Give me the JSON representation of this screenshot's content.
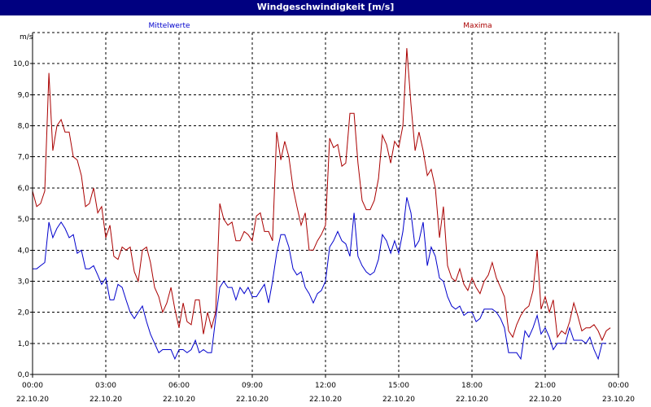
{
  "window": {
    "title": "Windgeschwindigkeit [m/s]"
  },
  "chart_data": {
    "type": "line",
    "title": "Windgeschwindigkeit [m/s]",
    "ylabel": "m/s",
    "ylim": [
      0,
      11
    ],
    "xlim": [
      0,
      24
    ],
    "grid": true,
    "legend": "top, above plot",
    "y_ticks": [
      "0,0",
      "1,0",
      "2,0",
      "3,0",
      "4,0",
      "5,0",
      "6,0",
      "7,0",
      "8,0",
      "9,0",
      "10,0"
    ],
    "x_ticks": [
      {
        "time": "00:00",
        "date": "22.10.20"
      },
      {
        "time": "03:00",
        "date": "22.10.20"
      },
      {
        "time": "06:00",
        "date": "22.10.20"
      },
      {
        "time": "09:00",
        "date": "22.10.20"
      },
      {
        "time": "12:00",
        "date": "22.10.20"
      },
      {
        "time": "15:00",
        "date": "22.10.20"
      },
      {
        "time": "18:00",
        "date": "22.10.20"
      },
      {
        "time": "21:00",
        "date": "22.10.20"
      },
      {
        "time": "00:00",
        "date": "23.10.20"
      }
    ],
    "x_hours": [
      0,
      0.17,
      0.33,
      0.5,
      0.67,
      0.83,
      1,
      1.17,
      1.33,
      1.5,
      1.67,
      1.83,
      2,
      2.17,
      2.33,
      2.5,
      2.67,
      2.83,
      3,
      3.17,
      3.33,
      3.5,
      3.67,
      3.83,
      4,
      4.17,
      4.33,
      4.5,
      4.67,
      4.83,
      5,
      5.17,
      5.33,
      5.5,
      5.67,
      5.83,
      6,
      6.17,
      6.33,
      6.5,
      6.67,
      6.83,
      7,
      7.17,
      7.33,
      7.5,
      7.67,
      7.83,
      8,
      8.17,
      8.33,
      8.5,
      8.67,
      8.83,
      9,
      9.17,
      9.33,
      9.5,
      9.67,
      9.83,
      10,
      10.17,
      10.33,
      10.5,
      10.67,
      10.83,
      11,
      11.17,
      11.33,
      11.5,
      11.67,
      11.83,
      12,
      12.17,
      12.33,
      12.5,
      12.67,
      12.83,
      13,
      13.17,
      13.33,
      13.5,
      13.67,
      13.83,
      14,
      14.17,
      14.33,
      14.5,
      14.67,
      14.83,
      15,
      15.17,
      15.33,
      15.5,
      15.67,
      15.83,
      16,
      16.17,
      16.33,
      16.5,
      16.67,
      16.83,
      17,
      17.17,
      17.33,
      17.5,
      17.67,
      17.83,
      18,
      18.17,
      18.33,
      18.5,
      18.67,
      18.83,
      19,
      19.17,
      19.33,
      19.5,
      19.67,
      19.83,
      20,
      20.17,
      20.33,
      20.5,
      20.67,
      20.83,
      21,
      21.17,
      21.33,
      21.5,
      21.67,
      21.83,
      22,
      22.17,
      22.33,
      22.5,
      22.67,
      22.83,
      23,
      23.17,
      23.33,
      23.5,
      23.67,
      23.83,
      24
    ],
    "series": [
      {
        "name": "Mittelwerte",
        "color": "#0000cc",
        "values": [
          3.4,
          3.4,
          3.5,
          3.6,
          4.9,
          4.4,
          4.7,
          4.9,
          4.7,
          4.4,
          4.5,
          3.9,
          4.0,
          3.4,
          3.4,
          3.5,
          3.2,
          2.9,
          3.1,
          2.4,
          2.4,
          2.9,
          2.8,
          2.4,
          2.0,
          1.8,
          2.0,
          2.2,
          1.7,
          1.3,
          1.0,
          0.7,
          0.8,
          0.8,
          0.8,
          0.5,
          0.8,
          0.8,
          0.7,
          0.8,
          1.1,
          0.7,
          0.8,
          0.7,
          0.7,
          1.8,
          2.8,
          3.0,
          2.8,
          2.8,
          2.4,
          2.8,
          2.6,
          2.8,
          2.5,
          2.5,
          2.7,
          2.9,
          2.3,
          3.0,
          3.9,
          4.5,
          4.5,
          4.1,
          3.4,
          3.2,
          3.3,
          2.8,
          2.6,
          2.3,
          2.6,
          2.7,
          3.0,
          4.1,
          4.3,
          4.6,
          4.3,
          4.2,
          3.8,
          5.2,
          3.8,
          3.5,
          3.3,
          3.2,
          3.3,
          3.7,
          4.5,
          4.3,
          3.9,
          4.3,
          3.9,
          4.6,
          5.7,
          5.2,
          4.1,
          4.3,
          4.9,
          3.5,
          4.1,
          3.8,
          3.1,
          3.0,
          2.5,
          2.2,
          2.1,
          2.2,
          1.9,
          2.0,
          2.0,
          1.7,
          1.8,
          2.1,
          2.1,
          2.1,
          2.0,
          1.8,
          1.5,
          0.7,
          0.7,
          0.7,
          0.5,
          1.4,
          1.2,
          1.5,
          1.9,
          1.3,
          1.5,
          1.2,
          0.8,
          1.0,
          1.0,
          1.0,
          1.5,
          1.1,
          1.1,
          1.1,
          1.0,
          1.2,
          0.8,
          0.5,
          1.0,
          1.0
        ]
      },
      {
        "name": "Maxima",
        "color": "#aa0000",
        "values": [
          5.9,
          5.4,
          5.5,
          5.9,
          9.7,
          7.2,
          8.0,
          8.2,
          7.8,
          7.8,
          7.0,
          6.9,
          6.4,
          5.4,
          5.5,
          6.0,
          5.2,
          5.4,
          4.4,
          4.8,
          3.8,
          3.7,
          4.1,
          4.0,
          4.1,
          3.3,
          3.0,
          4.0,
          4.1,
          3.6,
          2.8,
          2.5,
          2.0,
          2.3,
          2.8,
          2.1,
          1.5,
          2.3,
          1.7,
          1.6,
          2.4,
          2.4,
          1.3,
          2.0,
          1.5,
          2.0,
          5.5,
          5.0,
          4.8,
          4.9,
          4.3,
          4.3,
          4.6,
          4.5,
          4.3,
          5.1,
          5.2,
          4.6,
          4.6,
          4.3,
          7.8,
          6.9,
          7.5,
          7.0,
          6.0,
          5.4,
          4.8,
          5.2,
          4.0,
          4.0,
          4.3,
          4.5,
          4.8,
          7.6,
          7.3,
          7.4,
          6.7,
          6.8,
          8.4,
          8.4,
          6.8,
          5.6,
          5.3,
          5.3,
          5.6,
          6.3,
          7.7,
          7.4,
          6.8,
          7.5,
          7.3,
          8.0,
          10.5,
          8.7,
          7.2,
          7.8,
          7.2,
          6.4,
          6.6,
          6.0,
          4.4,
          5.4,
          3.5,
          3.1,
          3.0,
          3.4,
          2.9,
          2.7,
          3.1,
          2.8,
          2.6,
          3.0,
          3.2,
          3.6,
          3.1,
          2.8,
          2.5,
          1.4,
          1.2,
          1.6,
          1.9,
          2.1,
          2.2,
          2.7,
          4.0,
          2.1,
          2.5,
          2.0,
          2.4,
          1.2,
          1.4,
          1.3,
          1.7,
          2.3,
          1.9,
          1.4,
          1.5,
          1.5,
          1.6,
          1.4,
          1.1,
          1.4,
          1.5
        ]
      }
    ]
  }
}
